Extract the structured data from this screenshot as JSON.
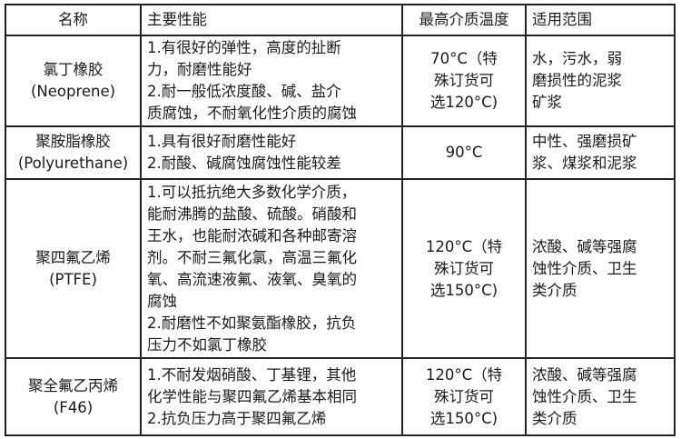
{
  "headers": [
    "名称",
    "主要性能",
    "最高介质温度",
    "适用范围"
  ],
  "rows": [
    {
      "name": [
        "氯丁橡胶",
        "(Neoprene)"
      ],
      "properties": [
        "1.有很好的弹性，高度的扯断",
        "力，耐磨性能好",
        "2.耐一般低浓度酸、碱、盐介",
        "质腐蚀，不耐氧化性介质的腐蚀"
      ],
      "temperature": [
        "70°C（特",
        "殊订货可",
        "选120°C)"
      ],
      "scope": [
        "水，污水，弱",
        "磨损性的泥浆",
        "矿浆"
      ]
    },
    {
      "name": [
        "聚胺脂橡胶",
        "(Polyurethane)"
      ],
      "properties": [
        "1.具有很好耐磨性能好",
        "2.耐酸、碱腐蚀腐蚀性能较差"
      ],
      "temperature": [
        "90°C"
      ],
      "scope": [
        "中性、强磨损矿",
        "浆、煤浆和泥浆"
      ]
    },
    {
      "name": [
        "聚四氟乙烯",
        "(PTFE)"
      ],
      "properties": [
        "1.可以抵抗绝大多数化学介质，",
        "能耐沸腾的盐酸、硫酸。硝酸和",
        "王水，也能耐浓碱和各种邮寄溶",
        "剂。不耐三氟化氯，高温三氟化",
        "氧、高流速液氟、液氧、臭氧的",
        "腐蚀",
        "2.耐磨性不如聚氨酯橡胶，抗负",
        "压力不如氯丁橡胶"
      ],
      "temperature": [
        "120°C（特",
        "殊订货可",
        "选150°C)"
      ],
      "scope": [
        "浓酸、碱等强腐",
        "蚀性介质、卫生",
        "类介质"
      ]
    },
    {
      "name": [
        "聚全氟乙丙烯",
        "(F46)"
      ],
      "properties": [
        "1.不耐发烟硝酸、丁基锂，其他",
        "化学性能与聚四氟乙烯基本相同",
        "2.抗负压力高于聚四氟乙烯"
      ],
      "temperature": [
        "120°C（特",
        "殊订货可",
        "选150°C)"
      ],
      "scope": [
        "浓酸、碱等强腐",
        "蚀性介质、卫生",
        "类介质"
      ]
    }
  ]
}
